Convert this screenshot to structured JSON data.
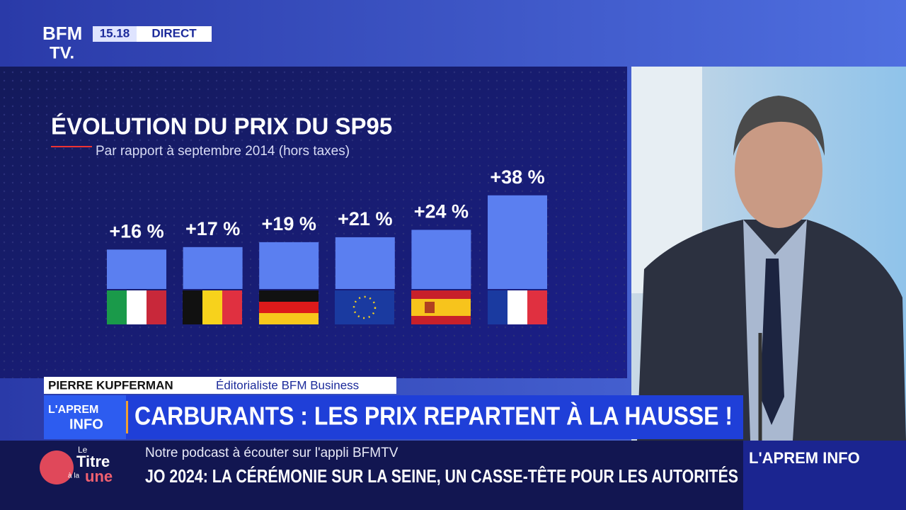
{
  "header": {
    "logo_top": "BFM",
    "logo_bottom": "TV.",
    "time": "15.18",
    "live": "DIRECT"
  },
  "chart_data": {
    "type": "bar",
    "title": "ÉVOLUTION DU PRIX DU SP95",
    "subtitle": "Par rapport à septembre 2014 (hors taxes)",
    "categories": [
      null,
      null,
      null,
      null,
      null,
      null
    ],
    "values": [
      16,
      17,
      19,
      21,
      24,
      38
    ],
    "value_labels": [
      "+16 %",
      "+17 %",
      "+19 %",
      "+21 %",
      "+24 %",
      "+38 %"
    ],
    "color": "#5b7ff0"
  },
  "lower_third": {
    "name": "PIERRE KUPFERMAN",
    "role": "Éditorialiste BFM Business",
    "show_top": "L'APREM",
    "show_bottom": "INFO",
    "headline": "CARBURANTS : LES PRIX REPARTENT À LA HAUSSE !"
  },
  "ticker": {
    "logo": [
      "Le",
      "Titre",
      "à la",
      "une"
    ],
    "line1": "Notre podcast à écouter sur l'appli BFMTV",
    "line2": "JO 2024: LA CÉRÉMONIE SUR LA SEINE, UN CASSE-TÊTE POUR LES AUTORITÉS",
    "show": "L'APREM INFO"
  }
}
